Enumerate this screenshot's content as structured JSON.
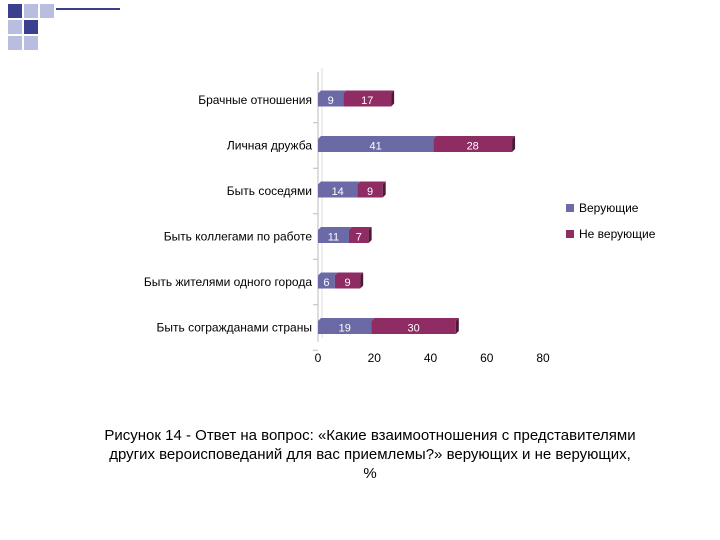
{
  "colors": {
    "believers": "#6b6aa6",
    "nonbelievers": "#8e2c63",
    "deco_dark": "#3a3f8f",
    "deco_light": "#b9bde0"
  },
  "chart_data": {
    "type": "bar",
    "orientation": "horizontal",
    "stacked": true,
    "categories": [
      "Брачные отношения",
      "Личная дружба",
      "Быть соседями",
      "Быть коллегами по работе",
      "Быть жителями одного города",
      "Быть согражданами страны"
    ],
    "series": [
      {
        "name": "Верующие",
        "values": [
          9,
          41,
          14,
          11,
          6,
          19
        ]
      },
      {
        "name": "Не верующие",
        "values": [
          17,
          28,
          9,
          7,
          9,
          30
        ]
      }
    ],
    "xlim": [
      0,
      80
    ],
    "xticks": [
      "0",
      "20",
      "40",
      "60",
      "80"
    ],
    "grid": false,
    "legend_position": "right"
  },
  "caption": {
    "line1": "Рисунок 14 - Ответ на вопрос: «Какие взаимоотношения с представителями",
    "line2": "других вероисповеданий для вас приемлемы?» верующих и не верующих,",
    "line3": "%"
  }
}
